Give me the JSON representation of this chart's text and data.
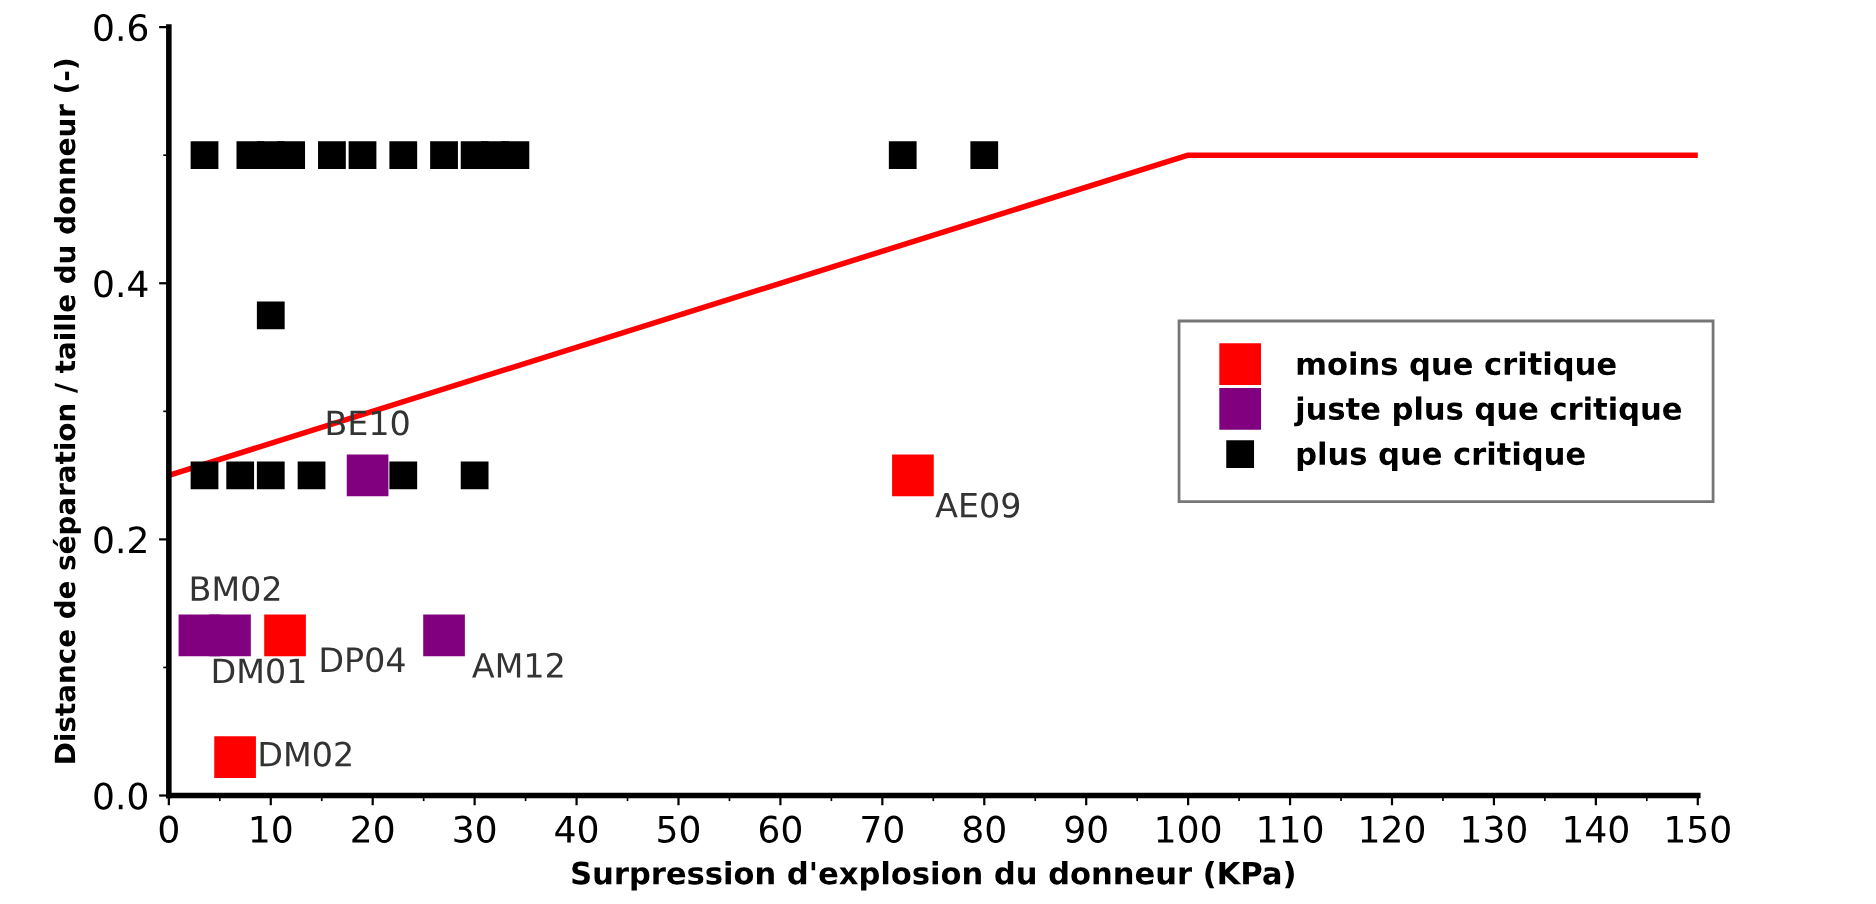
{
  "chart_data": {
    "type": "scatter",
    "xlabel": "Surpression d'explosion du donneur (KPa)",
    "ylabel": "Distance de séparation / taille du donneur (-)",
    "xlim": [
      0,
      150
    ],
    "xticks": [
      0,
      10,
      20,
      30,
      40,
      50,
      60,
      70,
      80,
      90,
      100,
      110,
      120,
      130,
      140,
      150
    ],
    "ylim": [
      0,
      0.6
    ],
    "yticks": [
      {
        "value": 0,
        "label": "0.0"
      },
      {
        "value": 0.2,
        "label": "0.2"
      },
      {
        "value": 0.4,
        "label": "0.4"
      },
      {
        "value": 0.6,
        "label": "0.6"
      }
    ],
    "grid": false,
    "legend": "right",
    "series": [
      {
        "type": "line",
        "marker": "none",
        "color": "#ff0000",
        "x": [
          0,
          100,
          150
        ],
        "values": [
          0.25,
          0.5,
          0.5
        ]
      },
      {
        "name": "moins que critique",
        "marker": "square",
        "color": "#ff0000",
        "x": [
          11.4,
          6.5,
          73
        ],
        "values": [
          0.125,
          0.03,
          0.25
        ]
      },
      {
        "name": "juste plus que critique",
        "marker": "square",
        "color": "#800080",
        "x": [
          19.5,
          3,
          6,
          27
        ],
        "values": [
          0.25,
          0.125,
          0.125,
          0.125
        ]
      },
      {
        "name": "plus que critique",
        "marker": "square",
        "color": "#000000",
        "x": [
          3.5,
          8,
          10,
          12,
          16,
          19,
          23,
          27,
          30,
          32,
          34,
          72,
          80,
          10,
          3.5,
          7,
          10,
          14,
          23,
          30
        ],
        "values": [
          0.5,
          0.5,
          0.5,
          0.5,
          0.5,
          0.5,
          0.5,
          0.5,
          0.5,
          0.5,
          0.5,
          0.5,
          0.5,
          0.375,
          0.25,
          0.25,
          0.25,
          0.25,
          0.25,
          0.25
        ]
      }
    ],
    "annotations": [
      {
        "text": "BE10",
        "x": 19.5,
        "y": 0.25
      },
      {
        "text": "BM02",
        "x": 6,
        "y": 0.125
      },
      {
        "text": "DM01",
        "x": 3,
        "y": 0.125
      },
      {
        "text": "DP04",
        "x": 11.4,
        "y": 0.125
      },
      {
        "text": "AM12",
        "x": 27,
        "y": 0.125
      },
      {
        "text": "DM02",
        "x": 6.5,
        "y": 0.03
      },
      {
        "text": "AE09",
        "x": 73,
        "y": 0.25
      }
    ]
  }
}
